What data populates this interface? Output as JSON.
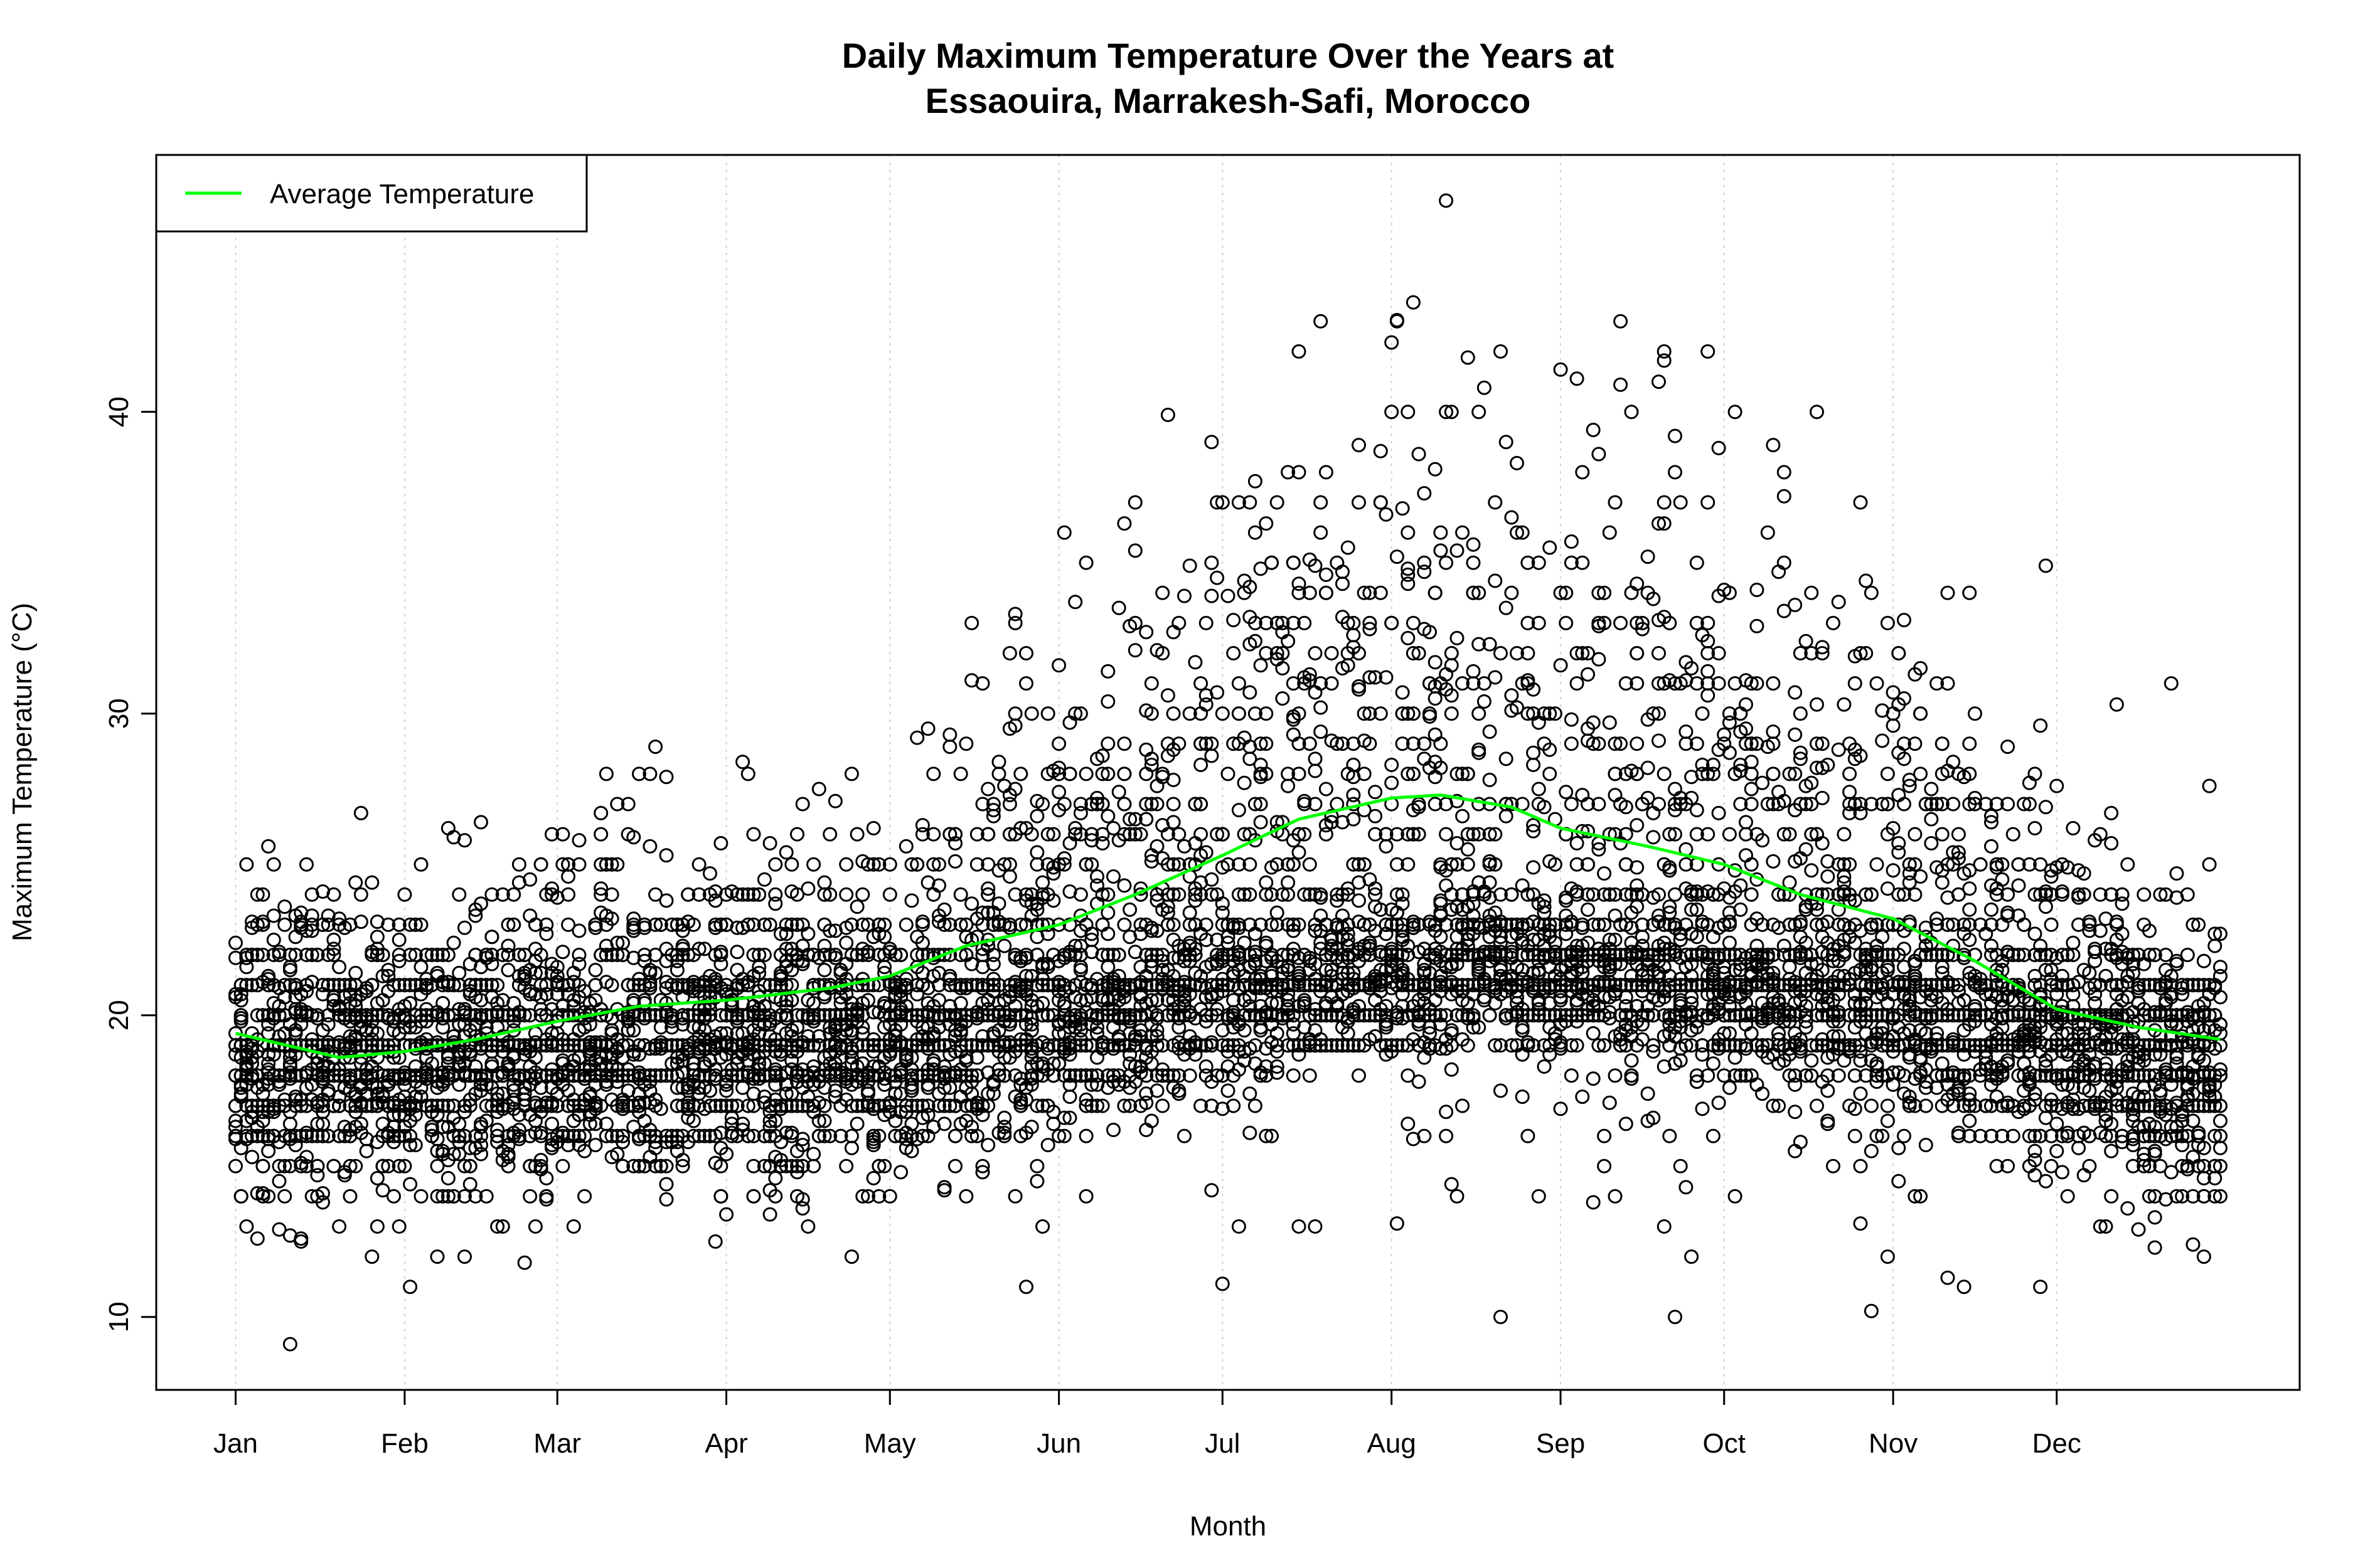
{
  "chart_data": {
    "type": "scatter",
    "title": [
      "Daily Maximum Temperature Over the Years at",
      "Essaouira, Marrakesh-Safi, Morocco"
    ],
    "xlabel": "Month",
    "ylabel": "Maximum Temperature (°C)",
    "xlim_day_of_year": [
      1,
      365
    ],
    "ylim": [
      9.1,
      47
    ],
    "x_ticks": [
      {
        "label": "Jan",
        "day": 1
      },
      {
        "label": "Feb",
        "day": 32
      },
      {
        "label": "Mar",
        "day": 60
      },
      {
        "label": "Apr",
        "day": 91
      },
      {
        "label": "May",
        "day": 121
      },
      {
        "label": "Jun",
        "day": 152
      },
      {
        "label": "Jul",
        "day": 182
      },
      {
        "label": "Aug",
        "day": 213
      },
      {
        "label": "Sep",
        "day": 244
      },
      {
        "label": "Oct",
        "day": 274
      },
      {
        "label": "Nov",
        "day": 305
      },
      {
        "label": "Dec",
        "day": 335
      }
    ],
    "y_ticks": [
      10,
      20,
      30,
      40
    ],
    "grid": "vertical dotted at month ticks",
    "legend": {
      "placement": "top-left",
      "entries": [
        {
          "label": "Average Temperature",
          "color": "#00ff00"
        }
      ]
    },
    "point_color": "#000000",
    "average_line": {
      "name": "Average Temperature",
      "color": "#00ff00",
      "day": [
        1,
        20,
        32,
        45,
        60,
        75,
        91,
        110,
        121,
        135,
        152,
        166,
        182,
        196,
        213,
        222,
        235,
        244,
        260,
        274,
        288,
        305,
        320,
        335,
        350,
        365
      ],
      "value": [
        19.4,
        18.6,
        18.8,
        19.2,
        19.8,
        20.3,
        20.5,
        20.9,
        21.3,
        22.3,
        23.0,
        24.0,
        25.3,
        26.5,
        27.2,
        27.3,
        26.9,
        26.2,
        25.6,
        25.0,
        24.0,
        23.2,
        21.8,
        20.2,
        19.6,
        19.2
      ]
    },
    "notable_points": [
      {
        "day": 223,
        "value": 47
      },
      {
        "day": 11,
        "value": 9.1
      }
    ]
  }
}
